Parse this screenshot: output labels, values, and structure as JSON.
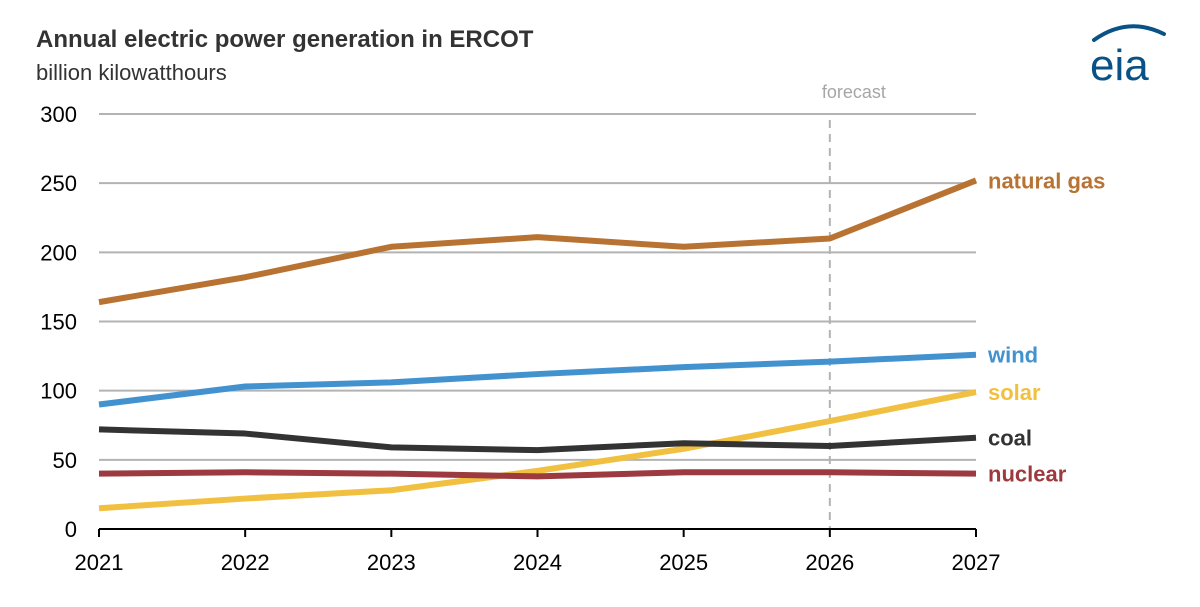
{
  "header": {
    "title": "Annual electric power generation in ERCOT",
    "subtitle": "billion kilowatthours"
  },
  "logo": {
    "text": "eia",
    "icon": "eia-logo-icon"
  },
  "colors": {
    "grid": "#b3b3b3",
    "axis": "#000000",
    "forecast_line": "#b3b3b3",
    "forecast_text": "#a6a6a6",
    "logo": "#0a5285"
  },
  "chart_data": {
    "type": "line",
    "title": "Annual electric power generation in ERCOT",
    "subtitle": "billion kilowatthours",
    "x": [
      "2021",
      "2022",
      "2023",
      "2024",
      "2025",
      "2026",
      "2027"
    ],
    "ylim": [
      0,
      300
    ],
    "yticks": [
      "0",
      "50",
      "100",
      "150",
      "200",
      "250",
      "300"
    ],
    "grid": true,
    "annotations": [
      {
        "text": "forecast",
        "x": "2026"
      }
    ],
    "series": [
      {
        "name": "natural gas",
        "color": "#b87333",
        "values": [
          164,
          182,
          204,
          211,
          204,
          210,
          252
        ]
      },
      {
        "name": "wind",
        "color": "#4292d0",
        "values": [
          90,
          103,
          106,
          112,
          117,
          121,
          126
        ]
      },
      {
        "name": "solar",
        "color": "#f1c040",
        "values": [
          15,
          22,
          28,
          42,
          58,
          78,
          99
        ]
      },
      {
        "name": "coal",
        "color": "#333333",
        "values": [
          72,
          69,
          59,
          57,
          62,
          60,
          66
        ]
      },
      {
        "name": "nuclear",
        "color": "#9c3a3f",
        "values": [
          40,
          41,
          40,
          38,
          41,
          41,
          40
        ]
      }
    ]
  }
}
